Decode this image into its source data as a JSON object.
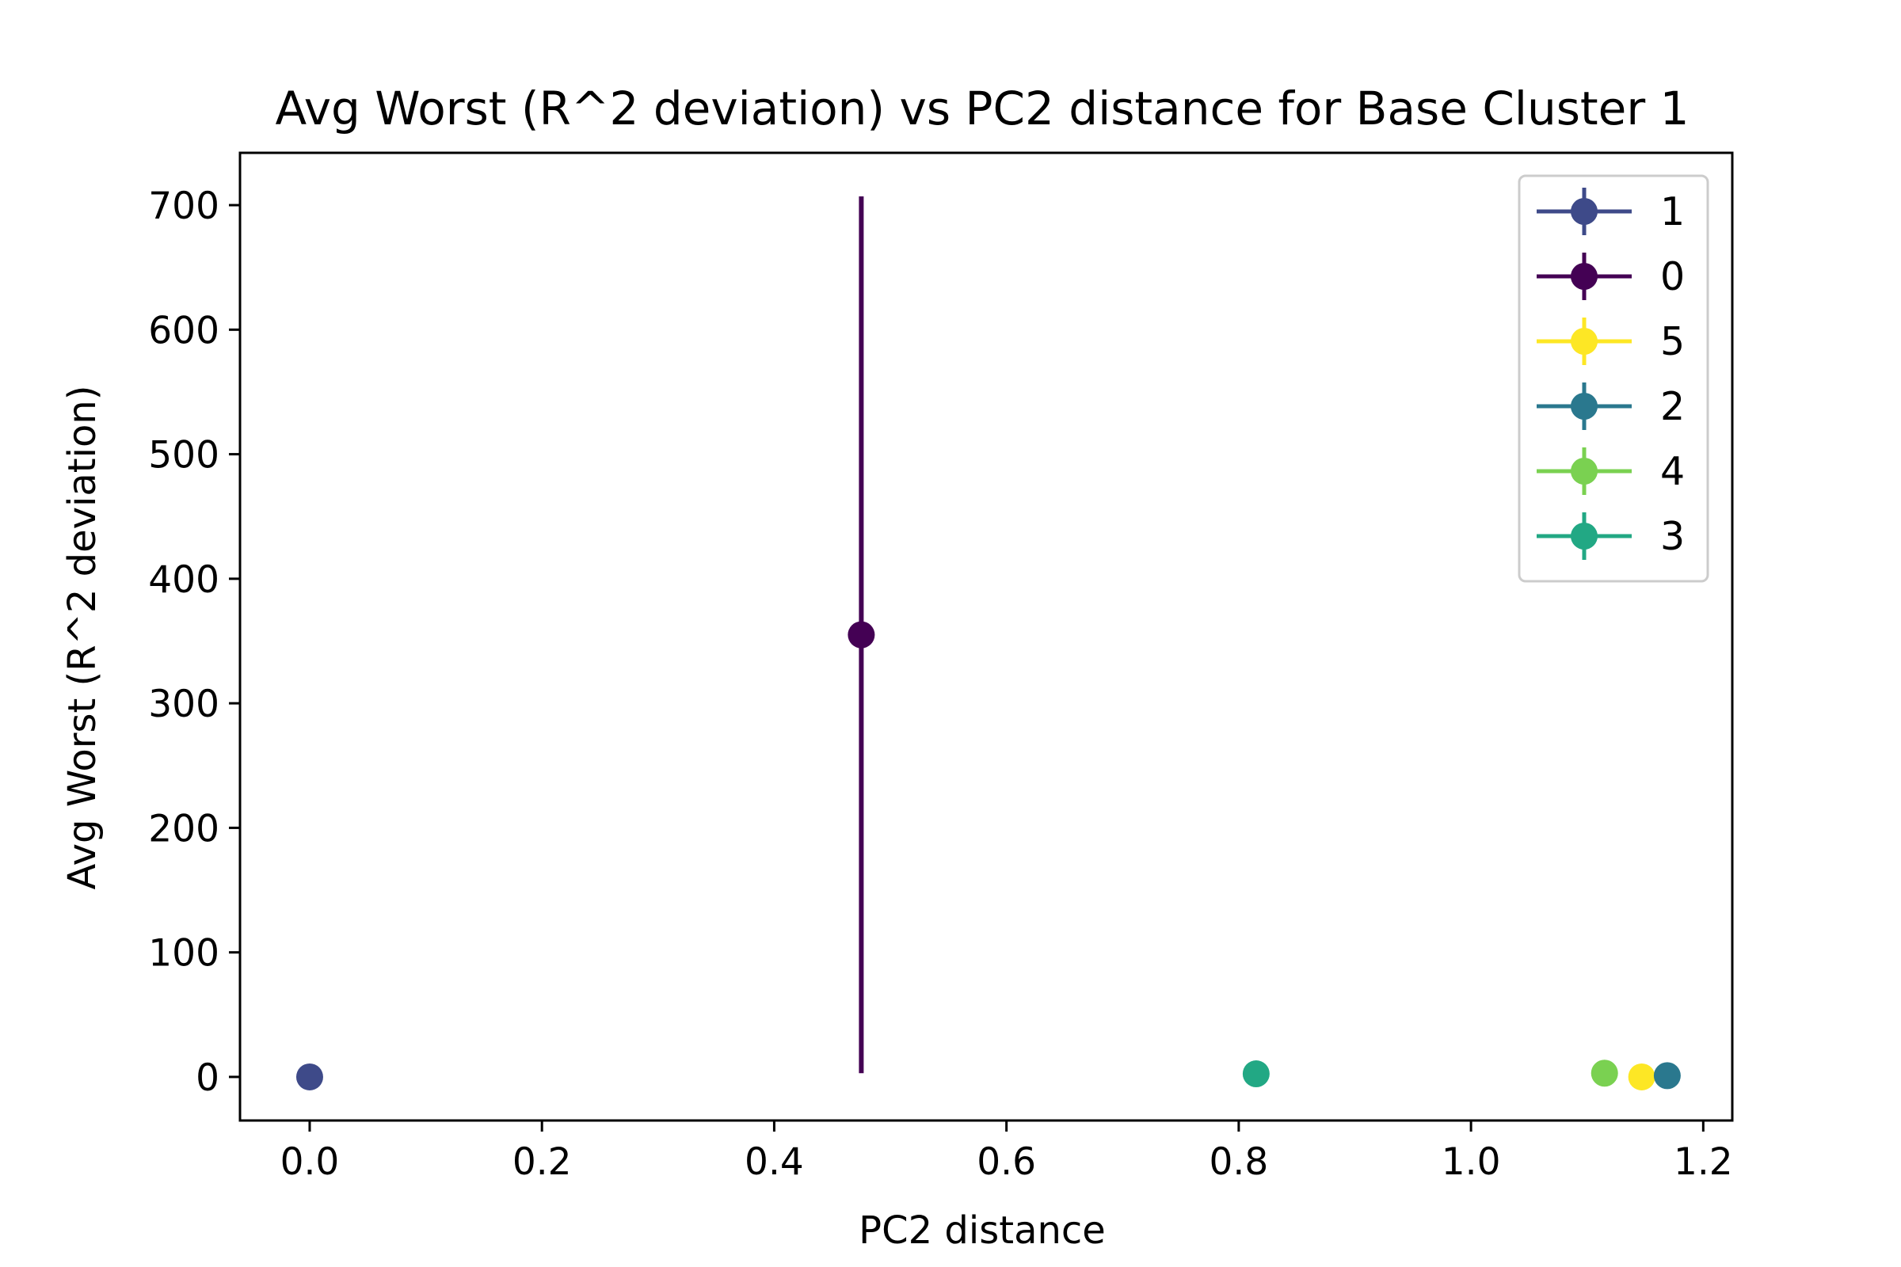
{
  "chart_data": {
    "type": "scatter",
    "title": "Avg Worst (R^2 deviation) vs PC2 distance for Base Cluster 1",
    "xlabel": "PC2 distance",
    "ylabel": "Avg Worst (R^2 deviation)",
    "xlim": [
      -0.06,
      1.225
    ],
    "ylim": [
      -35,
      742
    ],
    "xticks": [
      0.0,
      0.2,
      0.4,
      0.6,
      0.8,
      1.0,
      1.2
    ],
    "xtick_labels": [
      "0.0",
      "0.2",
      "0.4",
      "0.6",
      "0.8",
      "1.0",
      "1.2"
    ],
    "yticks": [
      0,
      100,
      200,
      300,
      400,
      500,
      600,
      700
    ],
    "ytick_labels": [
      "0",
      "100",
      "200",
      "300",
      "400",
      "500",
      "600",
      "700"
    ],
    "grid": false,
    "legend_position": "top-right",
    "series": [
      {
        "name": "1",
        "color": "#3e4a89",
        "x": 0.0,
        "y": 0.0,
        "yerr_low": 0.0,
        "yerr_high": 0.0
      },
      {
        "name": "0",
        "color": "#440154",
        "x": 0.475,
        "y": 355.0,
        "yerr_low": 352.0,
        "yerr_high": 352.0
      },
      {
        "name": "5",
        "color": "#fde725",
        "x": 1.147,
        "y": 0.0,
        "yerr_low": 0.0,
        "yerr_high": 0.0
      },
      {
        "name": "2",
        "color": "#2a788e",
        "x": 1.169,
        "y": 1.0,
        "yerr_low": 0.0,
        "yerr_high": 0.0
      },
      {
        "name": "4",
        "color": "#7ad151",
        "x": 1.115,
        "y": 3.0,
        "yerr_low": 0.0,
        "yerr_high": 0.0
      },
      {
        "name": "3",
        "color": "#22a884",
        "x": 0.815,
        "y": 2.5,
        "yerr_low": 0.0,
        "yerr_high": 0.0
      }
    ]
  }
}
